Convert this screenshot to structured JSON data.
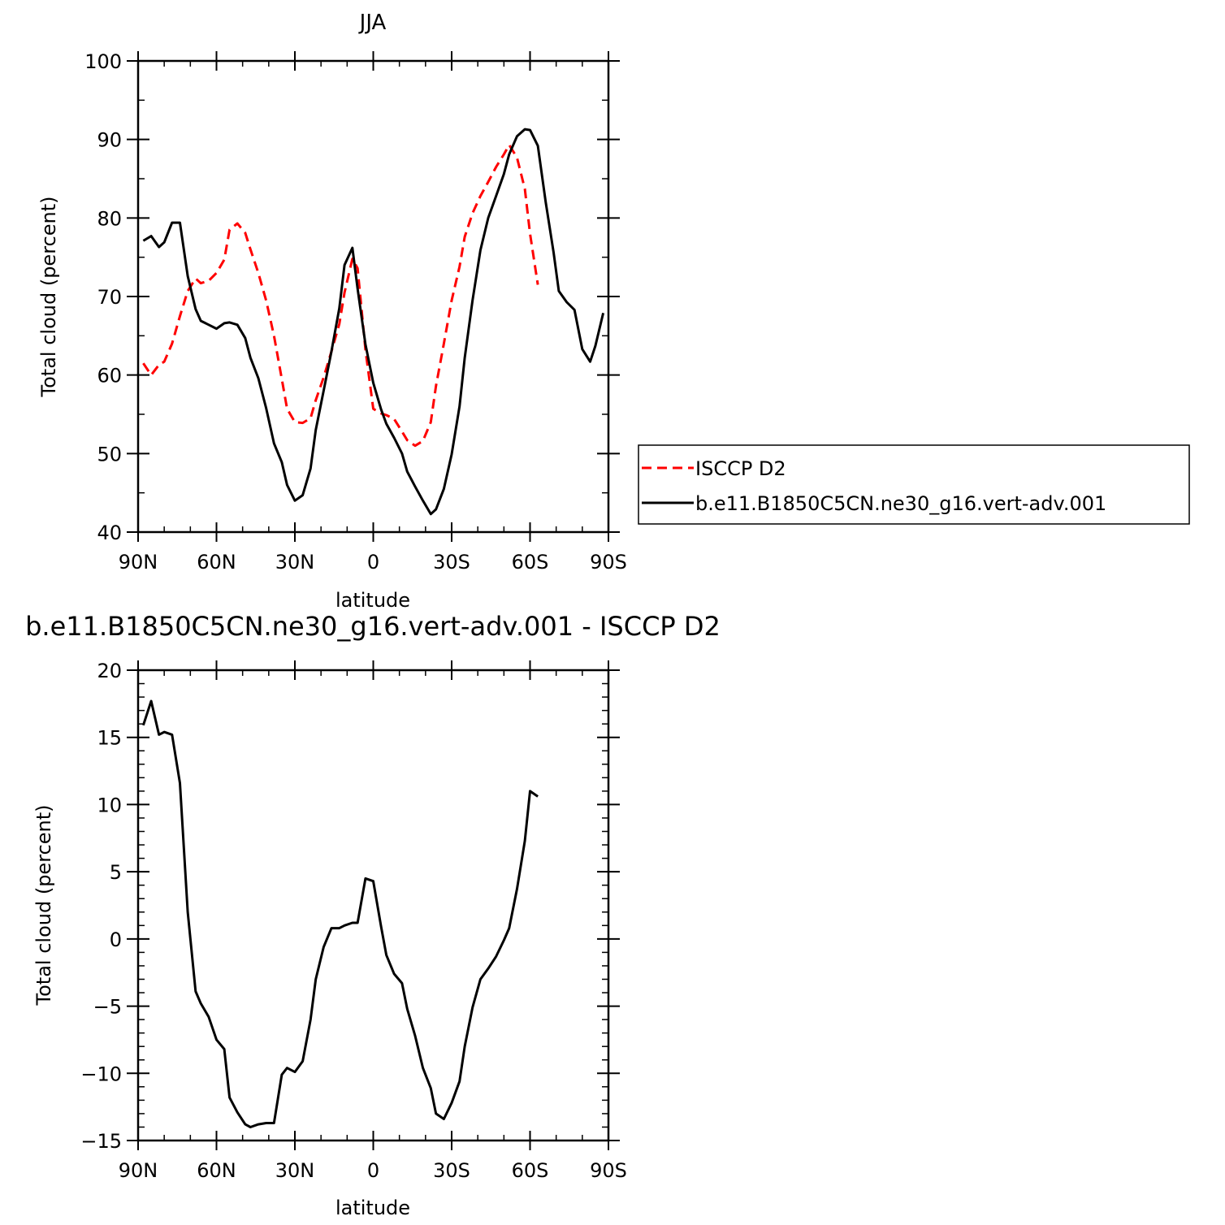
{
  "chart_data": [
    {
      "type": "line",
      "title": "JJA",
      "xlabel": "latitude",
      "ylabel": "Total cloud (percent)",
      "xlim": [
        90,
        -90
      ],
      "ylim": [
        40,
        100
      ],
      "yticks": [
        40,
        50,
        60,
        70,
        80,
        90,
        100
      ],
      "xticks": [
        {
          "value": 90,
          "label": "90N"
        },
        {
          "value": 60,
          "label": "60N"
        },
        {
          "value": 30,
          "label": "30N"
        },
        {
          "value": 0,
          "label": "0"
        },
        {
          "value": -30,
          "label": "30S"
        },
        {
          "value": -60,
          "label": "60S"
        },
        {
          "value": -90,
          "label": "90S"
        }
      ],
      "legend": {
        "placement": "right"
      },
      "series": [
        {
          "name": "ISCCP D2",
          "color": "#ff0000",
          "dash": "dashed",
          "x": [
            88,
            85,
            82,
            80,
            77,
            74,
            71,
            68,
            66,
            63,
            60,
            57,
            55,
            52,
            49,
            47,
            44,
            41,
            38,
            35,
            33,
            30,
            27,
            24,
            22,
            19,
            16,
            13,
            11,
            8,
            6,
            3,
            0,
            -3,
            -5,
            -8,
            -11,
            -13,
            -16,
            -19,
            -22,
            -24,
            -27,
            -30,
            -33,
            -35,
            -38,
            -41,
            -44,
            -47,
            -50,
            -52,
            -55,
            -58,
            -60,
            -63
          ],
          "y": [
            61.5,
            60.0,
            61.3,
            61.7,
            64.0,
            67.5,
            70.7,
            72.3,
            71.7,
            72.0,
            73.0,
            74.7,
            78.5,
            79.3,
            78.1,
            76.0,
            73.0,
            69.5,
            65.0,
            59.5,
            55.7,
            54.0,
            53.9,
            54.5,
            56.8,
            59.7,
            63.0,
            66.5,
            70.5,
            74.8,
            73.6,
            63.2,
            55.7,
            55.1,
            54.9,
            54.4,
            52.8,
            51.7,
            51.0,
            51.6,
            54.0,
            58.6,
            64.0,
            69.5,
            73.8,
            77.6,
            80.6,
            82.8,
            84.6,
            86.5,
            88.1,
            89.3,
            87.7,
            83.7,
            78.0,
            71.5
          ]
        },
        {
          "name": "b.e11.B1850C5CN.ne30_g16.vert-adv.001",
          "color": "#000000",
          "dash": "solid",
          "x": [
            88,
            85,
            82,
            80,
            77,
            74,
            71,
            68,
            66,
            63,
            60,
            57,
            55,
            52,
            49,
            47,
            44,
            41,
            38,
            35,
            33,
            30,
            27,
            24,
            22,
            19,
            16,
            13,
            11,
            8,
            6,
            3,
            0,
            -3,
            -5,
            -8,
            -11,
            -13,
            -16,
            -19,
            -22,
            -24,
            -27,
            -30,
            -33,
            -35,
            -38,
            -41,
            -44,
            -47,
            -50,
            -52,
            -55,
            -58,
            -60,
            -63,
            -66,
            -69,
            -71,
            -74,
            -77,
            -80,
            -83,
            -85,
            -88
          ],
          "y": [
            77.1,
            77.7,
            76.3,
            76.9,
            79.4,
            79.4,
            72.6,
            68.4,
            66.9,
            66.4,
            65.9,
            66.6,
            66.7,
            66.4,
            64.7,
            62.2,
            59.6,
            55.8,
            51.3,
            48.9,
            46.0,
            44.0,
            44.7,
            48.1,
            53.0,
            58.0,
            63.0,
            68.5,
            74.0,
            76.2,
            71.0,
            63.9,
            59.0,
            55.6,
            53.8,
            52.0,
            50.0,
            47.7,
            45.8,
            44.0,
            42.3,
            42.9,
            45.5,
            49.9,
            56.0,
            62.2,
            69.5,
            75.9,
            80.0,
            82.8,
            85.6,
            88.1,
            90.4,
            91.3,
            91.2,
            89.2,
            82.0,
            75.6,
            70.7,
            69.3,
            68.3,
            63.3,
            61.7,
            63.7,
            67.9
          ]
        }
      ]
    },
    {
      "type": "line",
      "title": "b.e11.B1850C5CN.ne30_g16.vert-adv.001 - ISCCP D2",
      "xlabel": "latitude",
      "ylabel": "Total cloud (percent)",
      "xlim": [
        90,
        -90
      ],
      "ylim": [
        -15,
        20
      ],
      "yticks": [
        -15,
        -10,
        -5,
        0,
        5,
        10,
        15,
        20
      ],
      "xticks": [
        {
          "value": 90,
          "label": "90N"
        },
        {
          "value": 60,
          "label": "60N"
        },
        {
          "value": 30,
          "label": "30N"
        },
        {
          "value": 0,
          "label": "0"
        },
        {
          "value": -30,
          "label": "30S"
        },
        {
          "value": -60,
          "label": "60S"
        },
        {
          "value": -90,
          "label": "90S"
        }
      ],
      "series": [
        {
          "color": "#000000",
          "dash": "solid",
          "x": [
            88,
            85,
            82,
            80,
            77,
            74,
            71,
            68,
            66,
            63,
            60,
            57,
            55,
            52,
            49,
            47,
            44,
            41,
            38,
            35,
            33,
            30,
            27,
            24,
            22,
            19,
            16,
            13,
            11,
            8,
            6,
            3,
            0,
            -3,
            -5,
            -8,
            -11,
            -13,
            -16,
            -19,
            -22,
            -24,
            -27,
            -30,
            -33,
            -35,
            -38,
            -41,
            -44,
            -47,
            -50,
            -52,
            -55,
            -58,
            -60,
            -63
          ],
          "y": [
            15.9,
            17.7,
            15.2,
            15.4,
            15.2,
            11.6,
            2.0,
            -3.9,
            -4.8,
            -5.8,
            -7.5,
            -8.2,
            -11.8,
            -12.9,
            -13.8,
            -14.0,
            -13.8,
            -13.7,
            -13.7,
            -10.1,
            -9.6,
            -9.9,
            -9.1,
            -6.0,
            -3.0,
            -0.6,
            0.8,
            0.8,
            1.0,
            1.2,
            1.2,
            4.5,
            4.3,
            0.9,
            -1.2,
            -2.6,
            -3.3,
            -5.2,
            -7.2,
            -9.6,
            -11.1,
            -13.0,
            -13.4,
            -12.2,
            -10.6,
            -8.0,
            -5.1,
            -3.0,
            -2.2,
            -1.3,
            -0.1,
            0.8,
            3.7,
            7.3,
            11.0,
            10.6
          ]
        }
      ]
    }
  ]
}
